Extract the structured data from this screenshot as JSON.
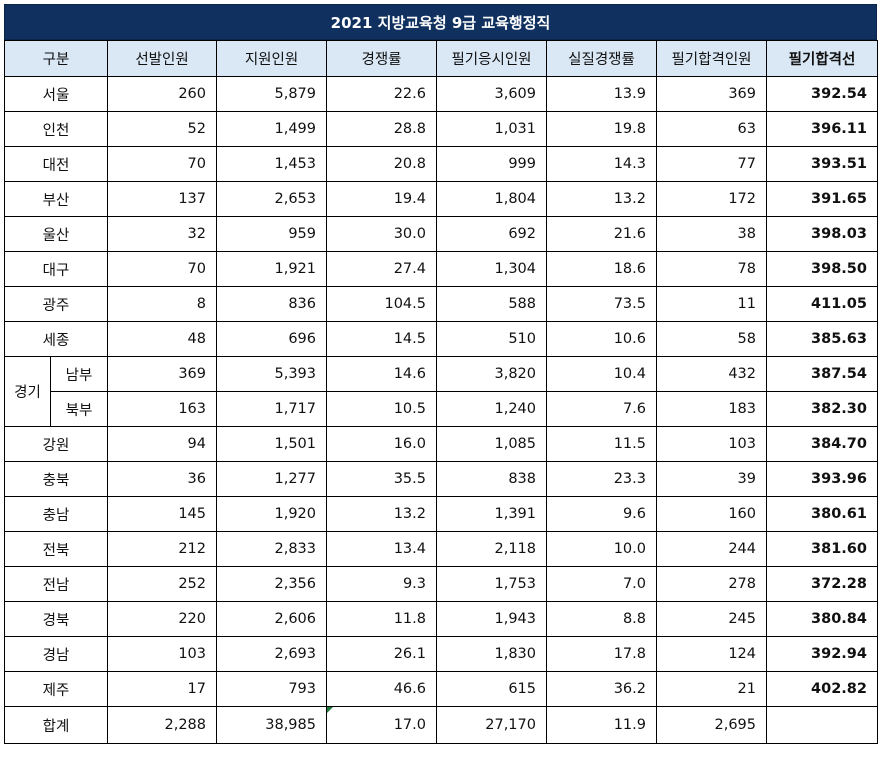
{
  "title": "2021 지방교육청 9급  교육행정직",
  "headers": [
    "구분",
    "선발인원",
    "지원인원",
    "경쟁률",
    "필기응시인원",
    "실질경쟁률",
    "필기합격인원",
    "필기합격선"
  ],
  "rows": [
    {
      "name": "서울",
      "v": [
        "260",
        "5,879",
        "22.6",
        "3,609",
        "13.9",
        "369",
        "392.54"
      ]
    },
    {
      "name": "인천",
      "v": [
        "52",
        "1,499",
        "28.8",
        "1,031",
        "19.8",
        "63",
        "396.11"
      ]
    },
    {
      "name": "대전",
      "v": [
        "70",
        "1,453",
        "20.8",
        "999",
        "14.3",
        "77",
        "393.51"
      ]
    },
    {
      "name": "부산",
      "v": [
        "137",
        "2,653",
        "19.4",
        "1,804",
        "13.2",
        "172",
        "391.65"
      ]
    },
    {
      "name": "울산",
      "v": [
        "32",
        "959",
        "30.0",
        "692",
        "21.6",
        "38",
        "398.03"
      ]
    },
    {
      "name": "대구",
      "v": [
        "70",
        "1,921",
        "27.4",
        "1,304",
        "18.6",
        "78",
        "398.50"
      ]
    },
    {
      "name": "광주",
      "v": [
        "8",
        "836",
        "104.5",
        "588",
        "73.5",
        "11",
        "411.05"
      ]
    },
    {
      "name": "세종",
      "v": [
        "48",
        "696",
        "14.5",
        "510",
        "10.6",
        "58",
        "385.63"
      ]
    }
  ],
  "gyeonggi": {
    "label": "경기",
    "rows": [
      {
        "name": "남부",
        "v": [
          "369",
          "5,393",
          "14.6",
          "3,820",
          "10.4",
          "432",
          "387.54"
        ]
      },
      {
        "name": "북부",
        "v": [
          "163",
          "1,717",
          "10.5",
          "1,240",
          "7.6",
          "183",
          "382.30"
        ]
      }
    ]
  },
  "rows2": [
    {
      "name": "강원",
      "v": [
        "94",
        "1,501",
        "16.0",
        "1,085",
        "11.5",
        "103",
        "384.70"
      ]
    },
    {
      "name": "충북",
      "v": [
        "36",
        "1,277",
        "35.5",
        "838",
        "23.3",
        "39",
        "393.96"
      ]
    },
    {
      "name": "충남",
      "v": [
        "145",
        "1,920",
        "13.2",
        "1,391",
        "9.6",
        "160",
        "380.61"
      ]
    },
    {
      "name": "전북",
      "v": [
        "212",
        "2,833",
        "13.4",
        "2,118",
        "10.0",
        "244",
        "381.60"
      ]
    },
    {
      "name": "전남",
      "v": [
        "252",
        "2,356",
        "9.3",
        "1,753",
        "7.0",
        "278",
        "372.28"
      ]
    },
    {
      "name": "경북",
      "v": [
        "220",
        "2,606",
        "11.8",
        "1,943",
        "8.8",
        "245",
        "380.84"
      ]
    },
    {
      "name": "경남",
      "v": [
        "103",
        "2,693",
        "26.1",
        "1,830",
        "17.8",
        "124",
        "392.94"
      ]
    },
    {
      "name": "제주",
      "v": [
        "17",
        "793",
        "46.6",
        "615",
        "36.2",
        "21",
        "402.82"
      ]
    }
  ],
  "total": {
    "name": "합계",
    "v": [
      "2,288",
      "38,985",
      "17.0",
      "27,170",
      "11.9",
      "2,695",
      ""
    ]
  },
  "colors": {
    "title_bg": "#10305f",
    "header_bg": "#dae7f5",
    "title_text": "#ffffff"
  }
}
